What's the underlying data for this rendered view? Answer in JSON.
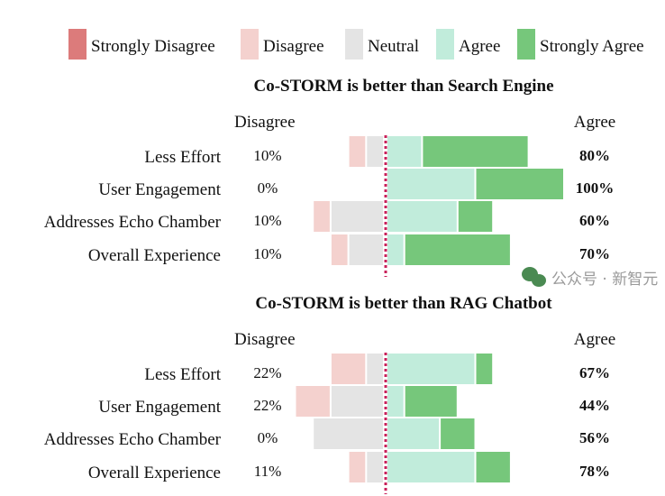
{
  "chart_data": {
    "type": "bar",
    "subtype": "diverging-stacked-horizontal",
    "legend": {
      "placement": "top",
      "entries": [
        {
          "name": "Strongly Disagree",
          "color": "#dc7b7b"
        },
        {
          "name": "Disagree",
          "color": "#f4d1ce"
        },
        {
          "name": "Neutral",
          "color": "#e4e4e4"
        },
        {
          "name": "Agree",
          "color": "#c1ecdb"
        },
        {
          "name": "Strongly Agree",
          "color": "#76c77b"
        }
      ]
    },
    "center_line_color": "#c8205a",
    "panels": [
      {
        "title": "Co-STORM is better than Search Engine",
        "left_header": "Disagree",
        "right_header": "Agree",
        "categories": [
          "Less Effort",
          "User Engagement",
          "Addresses Echo Chamber",
          "Overall Experience"
        ],
        "counts": {
          "Strongly Disagree": [
            0,
            0,
            0,
            0
          ],
          "Disagree": [
            1,
            0,
            1,
            1
          ],
          "Neutral": [
            1,
            0,
            3,
            2
          ],
          "Agree": [
            2,
            5,
            4,
            1
          ],
          "Strongly Agree": [
            6,
            5,
            2,
            6
          ]
        },
        "disagree_pct": [
          "10%",
          "0%",
          "10%",
          "10%"
        ],
        "agree_pct": [
          "80%",
          "100%",
          "60%",
          "70%"
        ]
      },
      {
        "title": "Co-STORM is better than RAG Chatbot",
        "left_header": "Disagree",
        "right_header": "Agree",
        "categories": [
          "Less Effort",
          "User Engagement",
          "Addresses Echo Chamber",
          "Overall Experience"
        ],
        "counts": {
          "Strongly Disagree": [
            0,
            0,
            0,
            0
          ],
          "Disagree": [
            2,
            2,
            0,
            1
          ],
          "Neutral": [
            1,
            3,
            4,
            1
          ],
          "Agree": [
            5,
            1,
            3,
            5
          ],
          "Strongly Agree": [
            1,
            3,
            2,
            2
          ]
        },
        "disagree_pct": [
          "22%",
          "22%",
          "0%",
          "11%"
        ],
        "agree_pct": [
          "67%",
          "44%",
          "56%",
          "78%"
        ]
      }
    ]
  },
  "watermark": "公众号 · 新智元"
}
